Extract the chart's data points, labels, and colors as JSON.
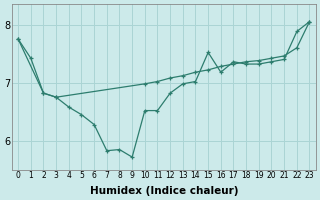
{
  "xlabel": "Humidex (Indice chaleur)",
  "background_color": "#cceaea",
  "line_color": "#2d7d6e",
  "x_ticks": [
    0,
    1,
    2,
    3,
    4,
    5,
    6,
    7,
    8,
    9,
    10,
    11,
    12,
    13,
    14,
    15,
    16,
    17,
    18,
    19,
    20,
    21,
    22,
    23
  ],
  "y_ticks": [
    6,
    7,
    8
  ],
  "ylim": [
    5.5,
    8.35
  ],
  "xlim": [
    -0.5,
    23.5
  ],
  "line_jagged_x": [
    0,
    1,
    2,
    3,
    4,
    5,
    6,
    7,
    8,
    9,
    10,
    11,
    12,
    13,
    14,
    15,
    16,
    17,
    18,
    19,
    20,
    21,
    22,
    23
  ],
  "line_jagged_y": [
    7.75,
    7.42,
    6.82,
    6.75,
    6.58,
    6.45,
    6.28,
    5.83,
    5.85,
    5.72,
    6.52,
    6.52,
    6.82,
    6.98,
    7.02,
    7.52,
    7.18,
    7.36,
    7.32,
    7.32,
    7.36,
    7.4,
    7.88,
    8.05
  ],
  "line_smooth_x": [
    0,
    2,
    3,
    10,
    11,
    12,
    13,
    14,
    15,
    16,
    17,
    18,
    19,
    20,
    21,
    22,
    23
  ],
  "line_smooth_y": [
    7.75,
    6.82,
    6.75,
    6.98,
    7.02,
    7.08,
    7.12,
    7.18,
    7.22,
    7.28,
    7.32,
    7.36,
    7.38,
    7.42,
    7.46,
    7.6,
    8.05
  ],
  "grid_color": "#aad4d4",
  "tick_fontsize": 5.5,
  "xlabel_fontsize": 7.5
}
